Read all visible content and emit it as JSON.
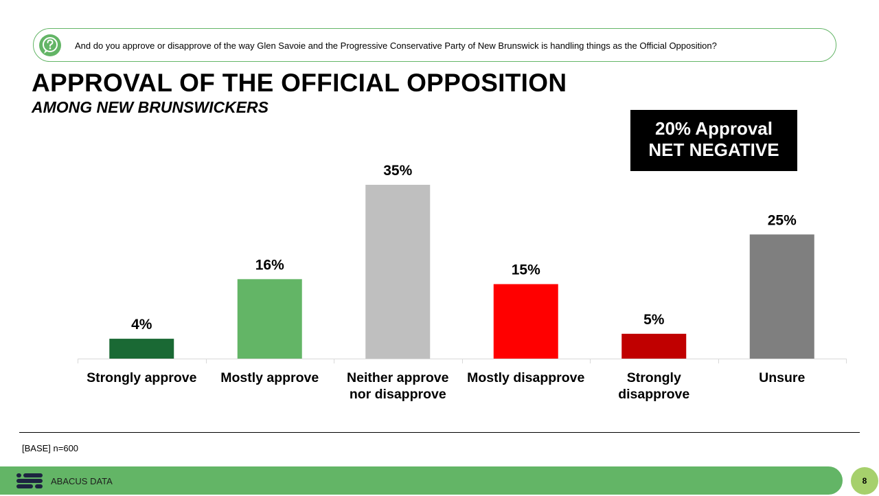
{
  "question": {
    "icon": "question-bubble-icon",
    "text": "And do you approve or disapprove of the way Glen Savoie and the Progressive Conservative Party of New Brunswick is handling things as the Official Opposition?"
  },
  "slide": {
    "title": "APPROVAL OF THE OFFICIAL OPPOSITION",
    "subtitle": "AMONG NEW BRUNSWICKERS"
  },
  "callout": {
    "line1": "20% Approval",
    "line2": "NET NEGATIVE"
  },
  "chart_data": {
    "type": "bar",
    "categories": [
      [
        "Strongly approve"
      ],
      [
        "Mostly approve"
      ],
      [
        "Neither approve",
        "nor disapprove"
      ],
      [
        "Mostly disapprove"
      ],
      [
        "Strongly",
        "disapprove"
      ],
      [
        "Unsure"
      ]
    ],
    "values": [
      4,
      16,
      35,
      15,
      5,
      25
    ],
    "value_labels": [
      "4%",
      "16%",
      "35%",
      "15%",
      "5%",
      "25%"
    ],
    "colors": [
      "#1a6934",
      "#63b566",
      "#bfbfbf",
      "#ff0000",
      "#c00000",
      "#7f7f7f"
    ],
    "ylim": [
      0,
      35
    ],
    "grid": false,
    "legend": "none"
  },
  "footer": {
    "base": "[BASE] n=600",
    "brand": "ABACUS DATA",
    "page": "8",
    "logo_icon": "abacus-logo-icon"
  }
}
